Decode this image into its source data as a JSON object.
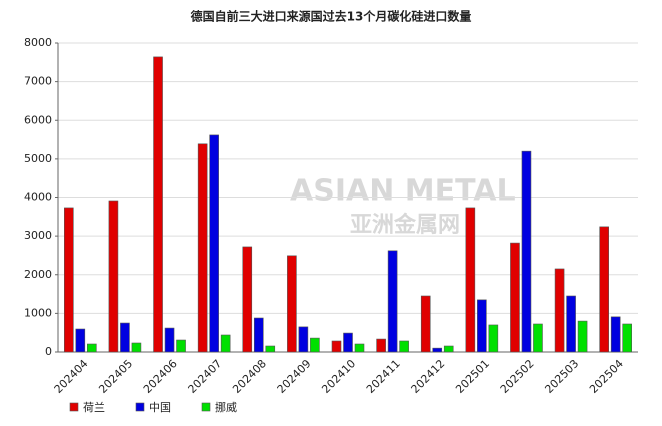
{
  "chart_data": {
    "type": "bar",
    "title": "德国自前三大进口来源国过去13个月碳化硅进口数量",
    "watermark": [
      "ASIAN METAL",
      "亚洲金属网"
    ],
    "categories": [
      "202404",
      "202405",
      "202406",
      "202407",
      "202408",
      "202409",
      "202410",
      "202411",
      "202412",
      "202501",
      "202502",
      "202503",
      "202504"
    ],
    "series": [
      {
        "name": "荷兰",
        "color": "#e00000",
        "values": [
          3730,
          3910,
          7640,
          5390,
          2720,
          2490,
          285,
          335,
          1450,
          3730,
          2820,
          2150,
          3240
        ]
      },
      {
        "name": "中国",
        "color": "#0000e0",
        "values": [
          595,
          750,
          620,
          5620,
          880,
          650,
          490,
          2620,
          100,
          1350,
          5200,
          1450,
          910
        ]
      },
      {
        "name": "挪威",
        "color": "#00e000",
        "values": [
          207,
          233,
          310,
          440,
          155,
          360,
          207,
          285,
          155,
          700,
          725,
          800,
          725
        ]
      }
    ],
    "ylim": [
      0,
      8000
    ],
    "yticks": [
      0,
      1000,
      2000,
      3000,
      4000,
      5000,
      6000,
      7000,
      8000
    ],
    "grid": true
  }
}
